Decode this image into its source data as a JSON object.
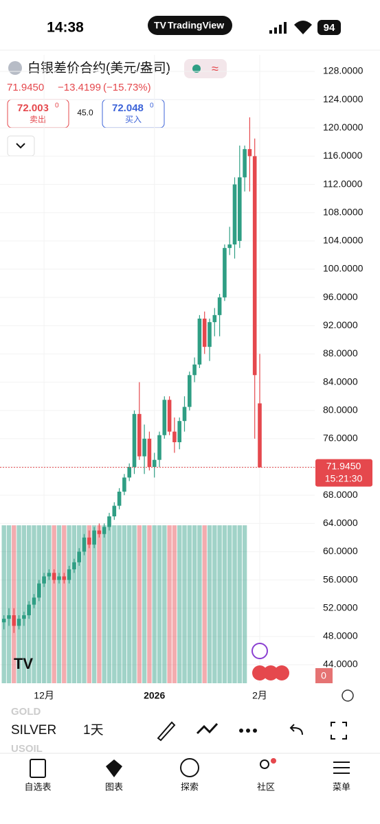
{
  "status_bar": {
    "time": "14:38",
    "app": "TradingView",
    "battery": "94"
  },
  "header": {
    "symbol": "白银差价合约(美元/盎司)",
    "last": "71.9450",
    "change": "−13.4199",
    "change_pct": "(−15.73%)",
    "sell_price": "72.003",
    "sell_pip": "0",
    "sell_label": "卖出",
    "spread": "45.0",
    "buy_price": "72.048",
    "buy_pip": "0",
    "buy_label": "买入"
  },
  "price_tag": {
    "price": "71.9450",
    "countdown": "15:21:30"
  },
  "volume_label": "0",
  "chart_data": {
    "type": "candlestick",
    "x": [
      null,
      null,
      null,
      null,
      null,
      null,
      null,
      null,
      "12月",
      null,
      null,
      null,
      null,
      null,
      null,
      null,
      null,
      null,
      null,
      null,
      null,
      null,
      null,
      null,
      null,
      null,
      null,
      null,
      null,
      null,
      "2026",
      null,
      null,
      null,
      null,
      null,
      null,
      null,
      null,
      null,
      null,
      null,
      null,
      null,
      null,
      null,
      null,
      null,
      null,
      null,
      null,
      "2月"
    ],
    "open": [
      50,
      50.5,
      51,
      49.5,
      50.5,
      51,
      52.5,
      53.5,
      55.5,
      56.5,
      57,
      56,
      56.5,
      56,
      57.5,
      58.5,
      60,
      62,
      61,
      63,
      62.5,
      63.5,
      65,
      66.5,
      68.5,
      70.5,
      72,
      79.5,
      73.5,
      76,
      72,
      73,
      76.5,
      81.5,
      77,
      75.5,
      78.5,
      80.5,
      85,
      86.5,
      93,
      89,
      92.5,
      93.5,
      96,
      103,
      103.5,
      104,
      113,
      117,
      116,
      81
    ],
    "high": [
      51,
      52,
      52,
      51,
      51.5,
      53,
      54,
      56,
      57,
      57.5,
      57.5,
      57,
      57,
      58,
      59,
      60.5,
      62.5,
      63,
      63.5,
      64,
      64,
      65.5,
      67,
      69,
      71,
      72.5,
      80,
      84,
      78,
      77,
      74,
      77,
      82,
      82,
      79,
      79,
      82,
      85.5,
      87.5,
      93.5,
      94,
      93,
      94.5,
      96.5,
      103.5,
      106,
      113,
      117.5,
      117.5,
      121.5,
      118.5,
      88
    ],
    "low": [
      49,
      49.5,
      48.5,
      49,
      49.5,
      50.5,
      52,
      53,
      55,
      56,
      55.5,
      55.5,
      55.5,
      55.5,
      57,
      58,
      59.5,
      60.5,
      60.5,
      62,
      62,
      63,
      64.5,
      66,
      68,
      70,
      71,
      73,
      71,
      71.5,
      70.5,
      72,
      76,
      76.5,
      74,
      74.5,
      77,
      80,
      84,
      86,
      88,
      87,
      90.5,
      90.5,
      95.5,
      102,
      101.5,
      103,
      111,
      111,
      76,
      71.9
    ],
    "close": [
      50.5,
      51,
      49.5,
      50.5,
      51,
      52.5,
      53.5,
      55.5,
      56.5,
      57,
      56,
      56.5,
      56,
      57.5,
      58.5,
      60,
      62,
      61,
      63,
      62.5,
      63.5,
      65,
      66.5,
      68.5,
      70.5,
      72,
      79.5,
      73.5,
      76,
      72,
      73,
      76.5,
      81.5,
      77,
      75.5,
      78.5,
      80.5,
      85,
      86.5,
      93,
      89,
      92.5,
      93.5,
      96,
      103,
      103.5,
      112,
      113,
      117,
      116,
      85,
      71.945
    ],
    "ylim": [
      40,
      132
    ],
    "yticks": [
      {
        "value": 44,
        "label": "44.0000"
      },
      {
        "value": 48,
        "label": "48.0000"
      },
      {
        "value": 52,
        "label": "52.0000"
      },
      {
        "value": 56,
        "label": "56.0000"
      },
      {
        "value": 60,
        "label": "60.0000"
      },
      {
        "value": 64,
        "label": "64.0000"
      },
      {
        "value": 68,
        "label": "68.0000"
      },
      {
        "value": 72,
        "label": "72.0000"
      },
      {
        "value": 76,
        "label": "76.0000"
      },
      {
        "value": 80,
        "label": "80.0000"
      },
      {
        "value": 84,
        "label": "84.0000"
      },
      {
        "value": 88,
        "label": "88.0000"
      },
      {
        "value": 92,
        "label": "92.0000"
      },
      {
        "value": 96,
        "label": "96.0000"
      },
      {
        "value": 100,
        "label": "100.0000"
      },
      {
        "value": 104,
        "label": "104.0000"
      },
      {
        "value": 108,
        "label": "108.0000"
      },
      {
        "value": 112,
        "label": "112.0000"
      },
      {
        "value": 116,
        "label": "116.0000"
      },
      {
        "value": 120,
        "label": "120.0000"
      },
      {
        "value": 124,
        "label": "124.0000"
      },
      {
        "value": 128,
        "label": "128.0000"
      }
    ],
    "up_color": "#2f9e84",
    "down_color": "#e5484d",
    "grid": true
  },
  "toolbar": {
    "symbols": [
      "GOLD",
      "SILVER",
      "USOIL"
    ],
    "interval": "1天"
  },
  "tab_bar": [
    "自选表",
    "图表",
    "探索",
    "社区",
    "菜单"
  ]
}
